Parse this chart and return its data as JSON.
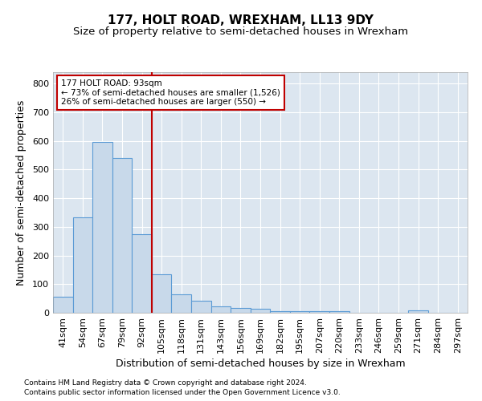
{
  "title": "177, HOLT ROAD, WREXHAM, LL13 9DY",
  "subtitle": "Size of property relative to semi-detached houses in Wrexham",
  "xlabel": "Distribution of semi-detached houses by size in Wrexham",
  "ylabel": "Number of semi-detached properties",
  "footnote1": "Contains HM Land Registry data © Crown copyright and database right 2024.",
  "footnote2": "Contains public sector information licensed under the Open Government Licence v3.0.",
  "bar_labels": [
    "41sqm",
    "54sqm",
    "67sqm",
    "79sqm",
    "92sqm",
    "105sqm",
    "118sqm",
    "131sqm",
    "143sqm",
    "156sqm",
    "169sqm",
    "182sqm",
    "195sqm",
    "207sqm",
    "220sqm",
    "233sqm",
    "246sqm",
    "259sqm",
    "271sqm",
    "284sqm",
    "297sqm"
  ],
  "bar_values": [
    55,
    333,
    597,
    541,
    275,
    135,
    65,
    42,
    22,
    17,
    13,
    6,
    5,
    7,
    5,
    0,
    0,
    0,
    8,
    0,
    0
  ],
  "bar_color": "#c8d9ea",
  "bar_edge_color": "#5b9bd5",
  "highlight_index": 4,
  "vline_color": "#c00000",
  "vline_x": 4.5,
  "annotation_text": "177 HOLT ROAD: 93sqm\n← 73% of semi-detached houses are smaller (1,526)\n26% of semi-detached houses are larger (550) →",
  "annotation_box_color": "white",
  "annotation_box_edge_color": "#c00000",
  "ylim": [
    0,
    840
  ],
  "yticks": [
    0,
    100,
    200,
    300,
    400,
    500,
    600,
    700,
    800
  ],
  "bg_color": "#dce6f0",
  "grid_color": "white",
  "title_fontsize": 11,
  "subtitle_fontsize": 9.5,
  "axis_label_fontsize": 9,
  "tick_fontsize": 8,
  "footnote_fontsize": 6.5
}
